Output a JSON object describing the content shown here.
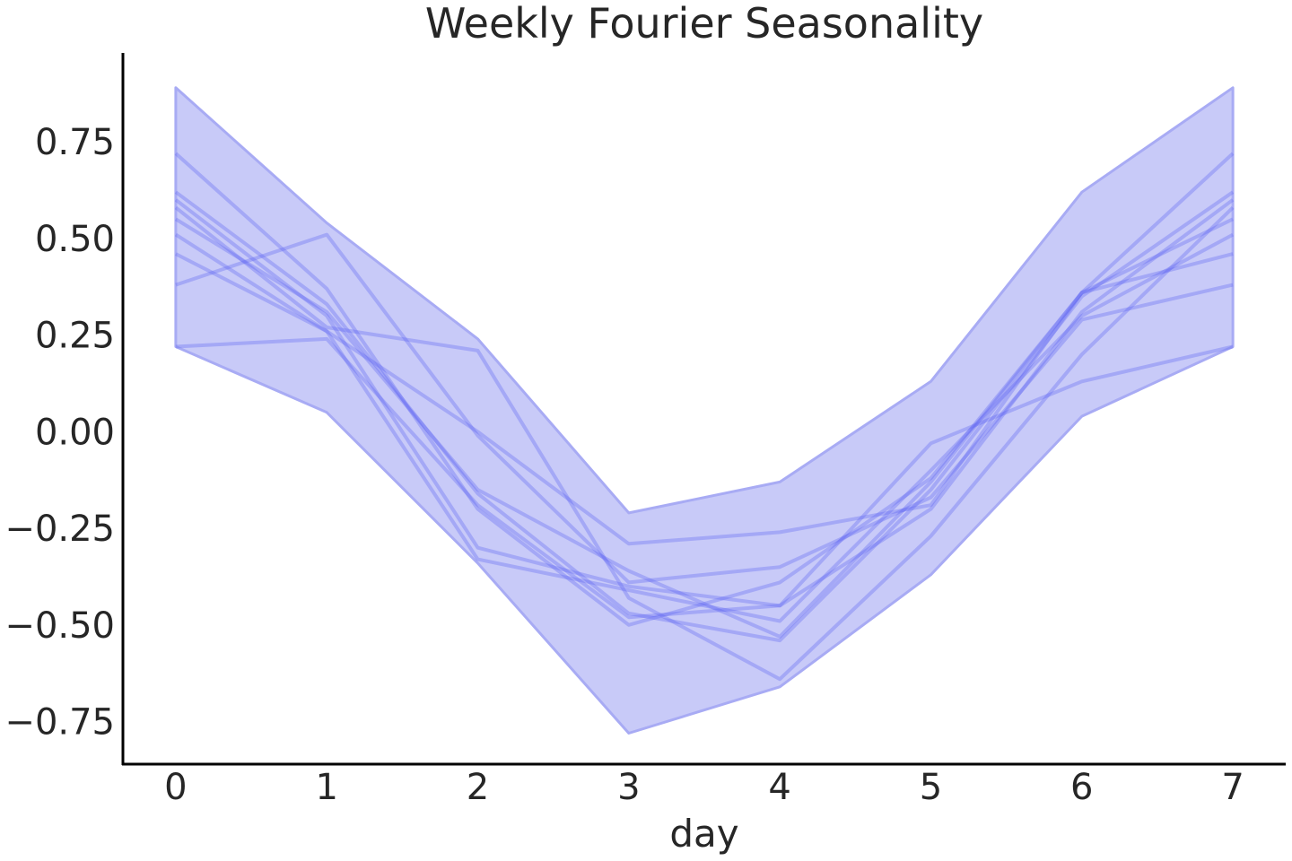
{
  "chart_data": {
    "type": "line",
    "title": "Weekly Fourier Seasonality",
    "xlabel": "day",
    "ylabel": "",
    "xlim": [
      -0.35,
      7.35
    ],
    "ylim": [
      -0.86,
      0.98
    ],
    "x": [
      0,
      1,
      2,
      3,
      4,
      5,
      6,
      7
    ],
    "xticks": [
      "0",
      "1",
      "2",
      "3",
      "4",
      "5",
      "6",
      "7"
    ],
    "yticks": [
      {
        "value": 0.75,
        "label": "0.75"
      },
      {
        "value": 0.5,
        "label": "0.50"
      },
      {
        "value": 0.25,
        "label": "0.25"
      },
      {
        "value": 0.0,
        "label": "0.00"
      },
      {
        "value": -0.25,
        "label": "−0.25"
      },
      {
        "value": -0.5,
        "label": "−0.50"
      },
      {
        "value": -0.75,
        "label": "−0.75"
      }
    ],
    "band": {
      "upper": [
        0.89,
        0.54,
        0.24,
        -0.21,
        -0.13,
        0.13,
        0.62,
        0.89
      ],
      "lower": [
        0.22,
        0.05,
        -0.34,
        -0.78,
        -0.66,
        -0.37,
        0.04,
        0.22
      ]
    },
    "series": [
      {
        "values": [
          0.72,
          0.37,
          -0.2,
          -0.5,
          -0.39,
          -0.12,
          0.36,
          0.72
        ]
      },
      {
        "values": [
          0.62,
          0.33,
          -0.16,
          -0.47,
          -0.54,
          -0.15,
          0.35,
          0.62
        ]
      },
      {
        "values": [
          0.6,
          0.3,
          -0.3,
          -0.4,
          -0.45,
          -0.2,
          0.31,
          0.6
        ]
      },
      {
        "values": [
          0.58,
          0.27,
          0.21,
          -0.43,
          -0.64,
          -0.27,
          0.2,
          0.58
        ]
      },
      {
        "values": [
          0.55,
          0.31,
          -0.15,
          -0.36,
          -0.53,
          -0.13,
          0.36,
          0.55
        ]
      },
      {
        "values": [
          0.51,
          0.26,
          -0.33,
          -0.41,
          -0.49,
          -0.1,
          0.3,
          0.51
        ]
      },
      {
        "values": [
          0.46,
          0.26,
          0.0,
          -0.29,
          -0.26,
          -0.19,
          0.36,
          0.46
        ]
      },
      {
        "values": [
          0.38,
          0.51,
          -0.01,
          -0.39,
          -0.35,
          -0.17,
          0.29,
          0.38
        ]
      },
      {
        "values": [
          0.22,
          0.24,
          -0.19,
          -0.48,
          -0.45,
          -0.03,
          0.13,
          0.22
        ]
      }
    ],
    "colors": {
      "band_fill": "#c8caf8",
      "band_edge": "#a8abf4",
      "line": "#5a5ff2",
      "axis": "#000000",
      "text": "#262626"
    },
    "grid": false,
    "legend": "none"
  }
}
